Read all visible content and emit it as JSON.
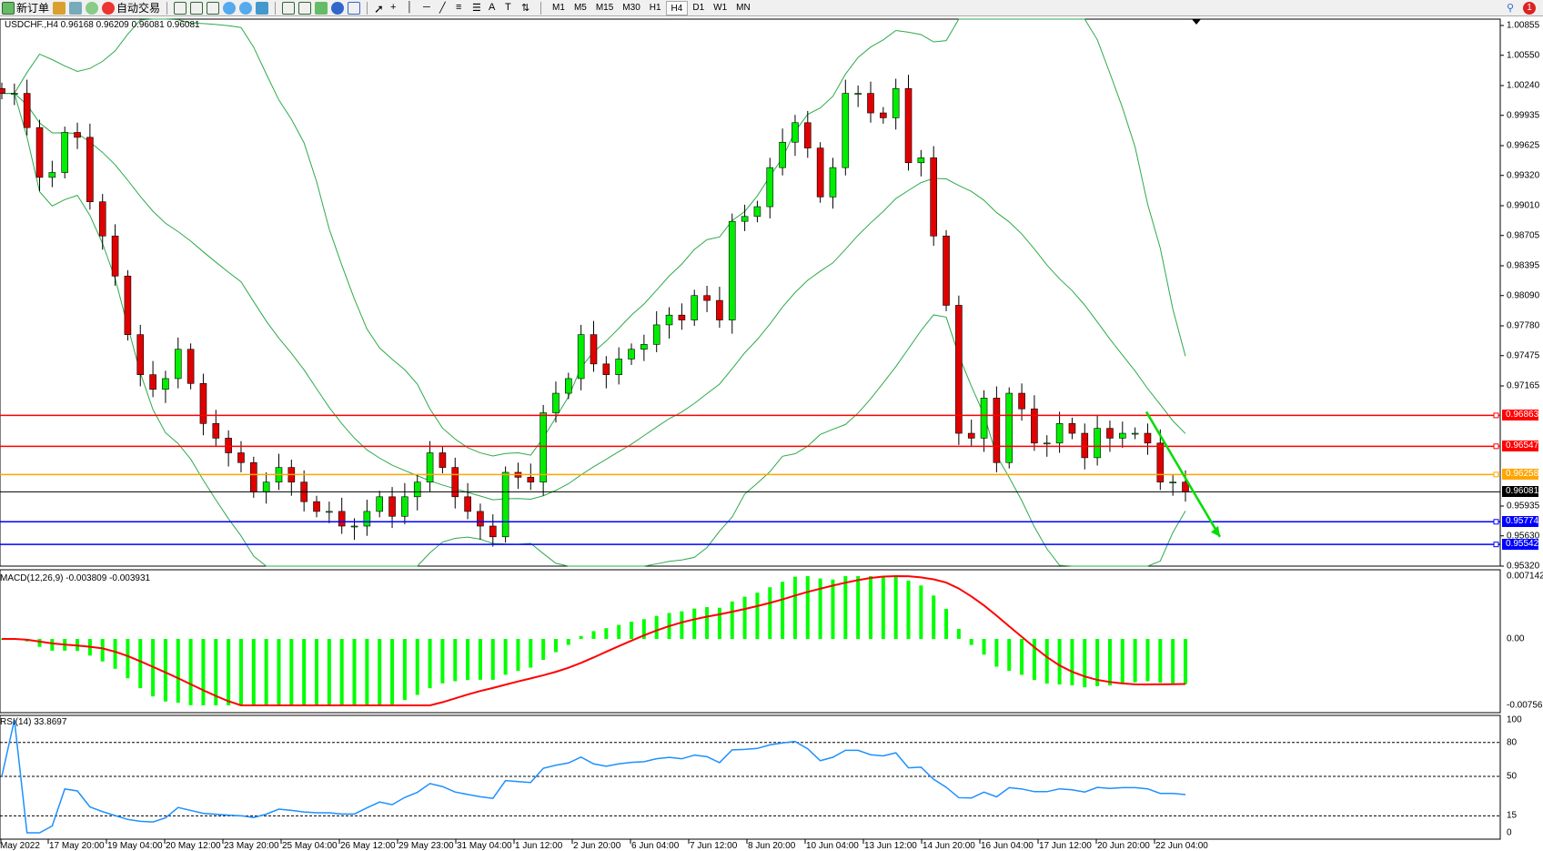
{
  "toolbar": {
    "new_order_label": "新订单",
    "auto_trading_label": "自动交易",
    "timeframes": [
      "M1",
      "M5",
      "M15",
      "M30",
      "H1",
      "H4",
      "D1",
      "W1",
      "MN"
    ],
    "active_timeframe": "H4",
    "notification_count": "1"
  },
  "chart_data": {
    "type": "candlestick",
    "title": "USDCHF.,H4  0.96168 0.96209 0.96081 0.96081",
    "symbol": "USDCHF.",
    "timeframe": "H4",
    "close": [
      1.0016,
      1.0016,
      0.9981,
      0.993,
      0.9935,
      0.9976,
      0.9971,
      0.9905,
      0.987,
      0.9829,
      0.9769,
      0.9728,
      0.9713,
      0.9724,
      0.9754,
      0.9719,
      0.9678,
      0.9663,
      0.9648,
      0.9638,
      0.9608,
      0.9618,
      0.9633,
      0.9618,
      0.9598,
      0.9588,
      0.9588,
      0.9573,
      0.9573,
      0.9588,
      0.9603,
      0.9583,
      0.9603,
      0.9618,
      0.9648,
      0.9633,
      0.9603,
      0.9588,
      0.9573,
      0.9562,
      0.9628,
      0.9623,
      0.9618,
      0.9689,
      0.9709,
      0.9724,
      0.9769,
      0.9739,
      0.9728,
      0.9744,
      0.9754,
      0.9759,
      0.9779,
      0.9789,
      0.9784,
      0.9809,
      0.9804,
      0.9784,
      0.9885,
      0.989,
      0.99,
      0.994,
      0.9966,
      0.9986,
      0.996,
      0.991,
      0.994,
      1.0016,
      1.0016,
      0.9996,
      0.9991,
      1.0021,
      0.9945,
      0.995,
      0.987,
      0.9799,
      0.9668,
      0.9663,
      0.9704,
      0.9638,
      0.9709,
      0.9693,
      0.9658,
      0.9658,
      0.9678,
      0.9668,
      0.9643,
      0.9673,
      0.9663,
      0.9668,
      0.9668,
      0.9658,
      0.9618,
      0.9618,
      0.9608
    ],
    "ylim": [
      0.9532,
      1.00855
    ],
    "y_ticks": [
      "1.00855",
      "1.00550",
      "1.00240",
      "0.99935",
      "0.99625",
      "0.99320",
      "0.99010",
      "0.98705",
      "0.98395",
      "0.98090",
      "0.97780",
      "0.97475",
      "0.97165",
      "0.95935",
      "0.95630",
      "0.95320"
    ],
    "x_ticks": [
      "May 2022",
      "17 May 20:00",
      "19 May 04:00",
      "20 May 12:00",
      "23 May 20:00",
      "25 May 04:00",
      "26 May 12:00",
      "29 May 23:00",
      "31 May 04:00",
      "1 Jun 12:00",
      "2 Jun 20:00",
      "6 Jun 04:00",
      "7 Jun 12:00",
      "8 Jun 20:00",
      "10 Jun 04:00",
      "13 Jun 12:00",
      "14 Jun 20:00",
      "16 Jun 04:00",
      "17 Jun 12:00",
      "20 Jun 20:00",
      "22 Jun 04:00"
    ],
    "overlay": "Bollinger Bands",
    "horizontal_lines": [
      {
        "price": "0.96863",
        "color": "#ff0000"
      },
      {
        "price": "0.96547",
        "color": "#ff0000"
      },
      {
        "price": "0.96258",
        "color": "#ffa500"
      },
      {
        "price": "0.96081",
        "color": "#000000"
      },
      {
        "price": "0.95774",
        "color": "#0000ff"
      },
      {
        "price": "0.95542",
        "color": "#0000ff"
      }
    ],
    "trend_arrow": {
      "from_price": 0.969,
      "to_price": 0.9562,
      "color": "#00dd00"
    },
    "bull_color": "#00ee00",
    "bear_color": "#e00000"
  },
  "macd": {
    "label": "MACD(12,26,9) -0.003809 -0.003931",
    "ylim": [
      -0.007561,
      0.007142
    ],
    "y_ticks": [
      "0.007142",
      "0.00",
      "-0.007561"
    ],
    "hist_color": "#00ff00",
    "signal_color": "#ff0000"
  },
  "rsi": {
    "label": "RSI(14) 33.8697",
    "ylim": [
      0,
      100
    ],
    "levels": [
      "80",
      "50",
      "15"
    ],
    "y_ticks": [
      "100",
      "80",
      "50",
      "15",
      "0"
    ],
    "line_color": "#1e90ff"
  }
}
